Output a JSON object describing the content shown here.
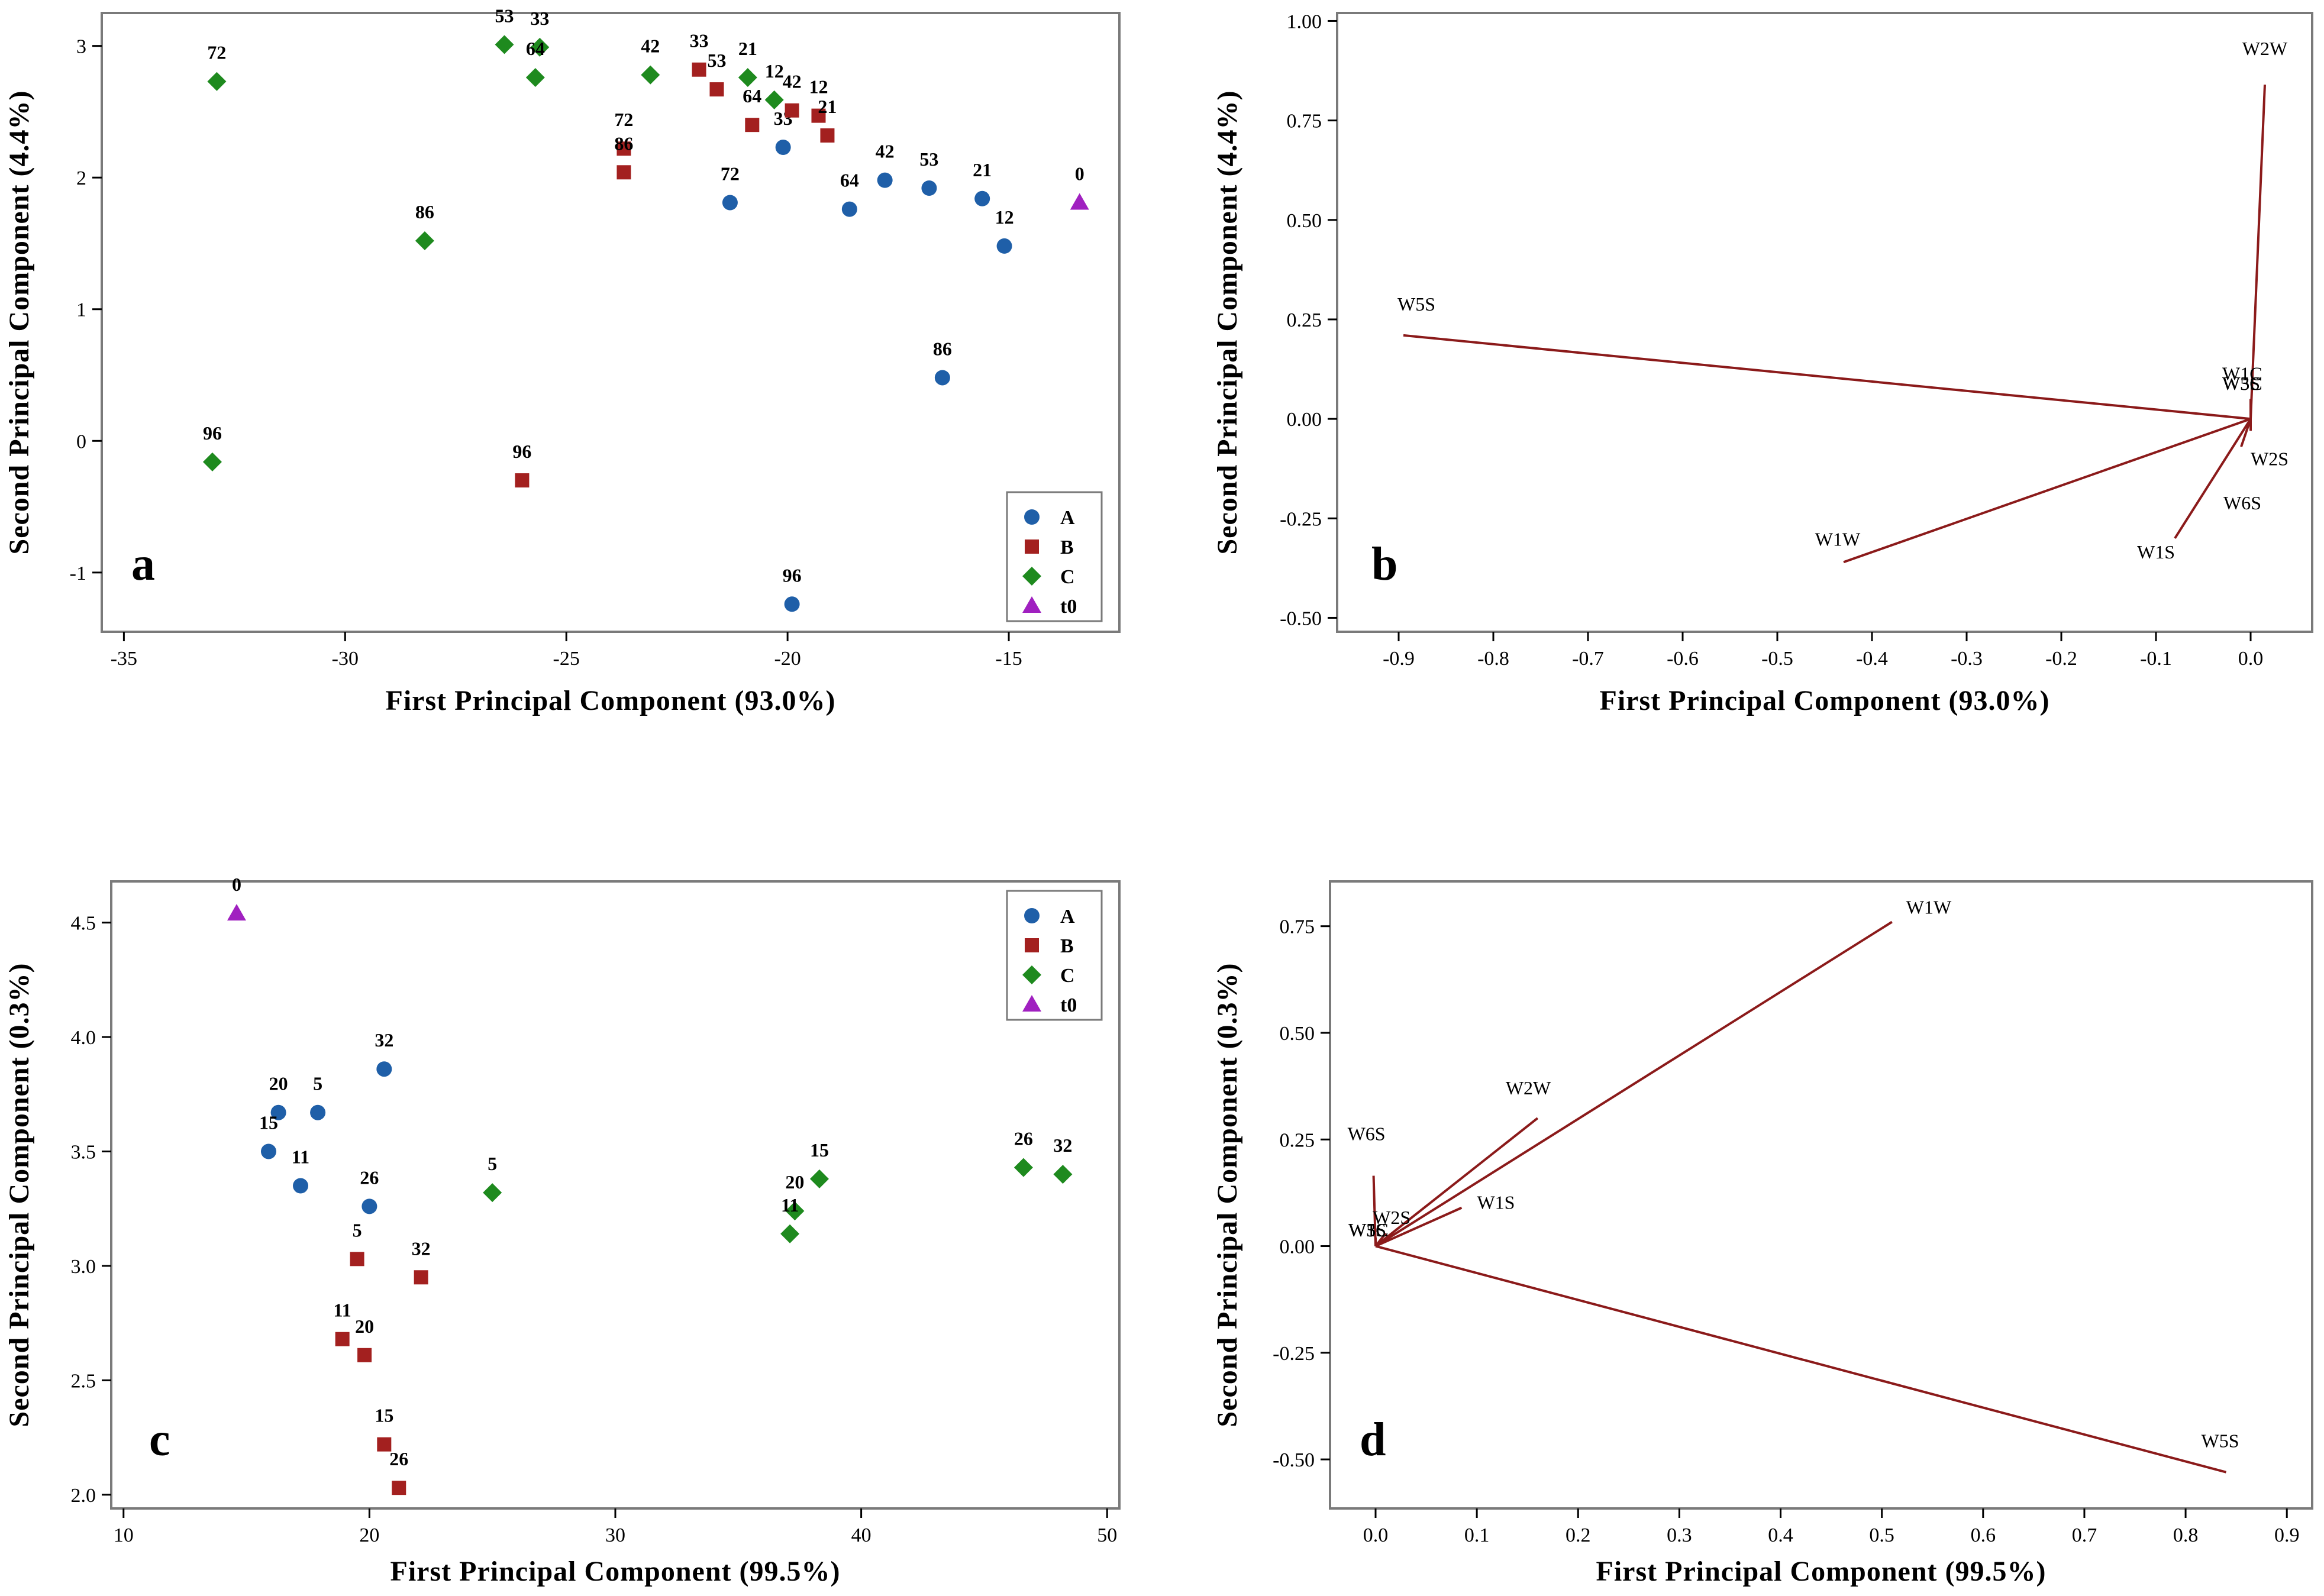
{
  "colors": {
    "A": "#1f5fa8",
    "B": "#a3201f",
    "C": "#1e8a1e",
    "t0": "#a020c0",
    "vector": "#8b1a1a"
  },
  "chart_data": [
    {
      "type": "scatter",
      "panel": "a",
      "xlabel": "First Principal Component (93.0%)",
      "ylabel": "Second Principal Component (4.4%)",
      "xlim": [
        -35.5,
        -12.5
      ],
      "ylim": [
        -1.45,
        3.25
      ],
      "xticks": [
        -35,
        -30,
        -25,
        -20,
        -15
      ],
      "yticks": [
        -1,
        0,
        1,
        2,
        3
      ],
      "legend": [
        "A",
        "B",
        "C",
        "t0"
      ],
      "legend_position": "bottom-right",
      "series": [
        {
          "name": "A",
          "marker": "circle",
          "points": [
            {
              "x": -21.3,
              "y": 1.81,
              "label": "72"
            },
            {
              "x": -20.1,
              "y": 2.23,
              "label": "33"
            },
            {
              "x": -18.6,
              "y": 1.76,
              "label": "64"
            },
            {
              "x": -17.8,
              "y": 1.98,
              "label": "42"
            },
            {
              "x": -16.8,
              "y": 1.92,
              "label": "53"
            },
            {
              "x": -15.6,
              "y": 1.84,
              "label": "21"
            },
            {
              "x": -15.1,
              "y": 1.48,
              "label": "12"
            },
            {
              "x": -16.5,
              "y": 0.48,
              "label": "86"
            },
            {
              "x": -19.9,
              "y": -1.24,
              "label": "96"
            }
          ]
        },
        {
          "name": "B",
          "marker": "square",
          "points": [
            {
              "x": -23.7,
              "y": 2.22,
              "label": "72"
            },
            {
              "x": -23.7,
              "y": 2.04,
              "label": "86"
            },
            {
              "x": -22.0,
              "y": 2.82,
              "label": "33"
            },
            {
              "x": -21.6,
              "y": 2.67,
              "label": "53"
            },
            {
              "x": -20.8,
              "y": 2.4,
              "label": "64"
            },
            {
              "x": -19.9,
              "y": 2.51,
              "label": "42"
            },
            {
              "x": -19.3,
              "y": 2.47,
              "label": "12"
            },
            {
              "x": -19.1,
              "y": 2.32,
              "label": "21"
            },
            {
              "x": -26.0,
              "y": -0.3,
              "label": "96"
            }
          ]
        },
        {
          "name": "C",
          "marker": "diamond",
          "points": [
            {
              "x": -32.9,
              "y": 2.73,
              "label": "72"
            },
            {
              "x": -26.4,
              "y": 3.01,
              "label": "53"
            },
            {
              "x": -25.6,
              "y": 2.99,
              "label": "33"
            },
            {
              "x": -25.7,
              "y": 2.76,
              "label": "64"
            },
            {
              "x": -23.1,
              "y": 2.78,
              "label": "42"
            },
            {
              "x": -20.9,
              "y": 2.76,
              "label": "21"
            },
            {
              "x": -20.3,
              "y": 2.59,
              "label": "12"
            },
            {
              "x": -28.2,
              "y": 1.52,
              "label": "86"
            },
            {
              "x": -33.0,
              "y": -0.16,
              "label": "96"
            }
          ]
        },
        {
          "name": "t0",
          "marker": "triangle",
          "points": [
            {
              "x": -13.4,
              "y": 1.81,
              "label": "0"
            }
          ]
        }
      ]
    },
    {
      "type": "biplot",
      "panel": "b",
      "xlabel": "First Principal Component (93.0%)",
      "ylabel": "Second Principal Component (4.4%)",
      "xlim": [
        -0.965,
        0.065
      ],
      "ylim": [
        -0.535,
        1.02
      ],
      "xticks": [
        -0.9,
        -0.8,
        -0.7,
        -0.6,
        -0.5,
        -0.4,
        -0.3,
        -0.2,
        -0.1,
        0.0
      ],
      "xticklabels": [
        "-0.9",
        "-0.8",
        "-0.7",
        "-0.6",
        "-0.5",
        "-0.4",
        "-0.3",
        "-0.2",
        "-0.1",
        "0.0"
      ],
      "yticks": [
        -0.5,
        -0.25,
        0,
        0.25,
        0.5,
        0.75,
        1.0
      ],
      "yticklabels": [
        "-0.50",
        "-0.25",
        "0.00",
        "0.25",
        "0.50",
        "0.75",
        "1.00"
      ],
      "vectors": [
        {
          "name": "W2W",
          "x": 0.015,
          "y": 0.84
        },
        {
          "name": "W5S",
          "x": -0.895,
          "y": 0.21
        },
        {
          "name": "W1W",
          "x": -0.43,
          "y": -0.36
        },
        {
          "name": "W1S",
          "x": -0.08,
          "y": -0.3
        },
        {
          "name": "W6S",
          "x": -0.01,
          "y": -0.07
        },
        {
          "name": "W2S",
          "x": 0.0,
          "y": -0.03
        },
        {
          "name": "W1C",
          "x": 0.0,
          "y": 0.05
        },
        {
          "name": "W3S",
          "x": 0.0,
          "y": 0.04
        },
        {
          "name": "W5C",
          "x": 0.0,
          "y": 0.04
        },
        {
          "name": "W3C",
          "x": 0.0,
          "y": 0.04
        }
      ]
    },
    {
      "type": "scatter",
      "panel": "c",
      "xlabel": "First Principal Component (99.5%)",
      "ylabel": "Second Principal Component (0.3%)",
      "xlim": [
        9.5,
        50.5
      ],
      "ylim": [
        1.94,
        4.68
      ],
      "xticks": [
        10,
        20,
        30,
        40,
        50
      ],
      "yticks": [
        2.0,
        2.5,
        3.0,
        3.5,
        4.0,
        4.5
      ],
      "yticklabels": [
        "2.0",
        "2.5",
        "3.0",
        "3.5",
        "4.0",
        "4.5"
      ],
      "legend": [
        "A",
        "B",
        "C",
        "t0"
      ],
      "legend_position": "top-right",
      "series": [
        {
          "name": "A",
          "marker": "circle",
          "points": [
            {
              "x": 20.6,
              "y": 3.86,
              "label": "32"
            },
            {
              "x": 16.3,
              "y": 3.67,
              "label": "20"
            },
            {
              "x": 17.9,
              "y": 3.67,
              "label": "5"
            },
            {
              "x": 15.9,
              "y": 3.5,
              "label": "15"
            },
            {
              "x": 17.2,
              "y": 3.35,
              "label": "11"
            },
            {
              "x": 20.0,
              "y": 3.26,
              "label": "26"
            }
          ]
        },
        {
          "name": "B",
          "marker": "square",
          "points": [
            {
              "x": 19.5,
              "y": 3.03,
              "label": "5"
            },
            {
              "x": 22.1,
              "y": 2.95,
              "label": "32"
            },
            {
              "x": 18.9,
              "y": 2.68,
              "label": "11"
            },
            {
              "x": 19.8,
              "y": 2.61,
              "label": "20"
            },
            {
              "x": 20.6,
              "y": 2.22,
              "label": "15"
            },
            {
              "x": 21.2,
              "y": 2.03,
              "label": "26"
            }
          ]
        },
        {
          "name": "C",
          "marker": "diamond",
          "points": [
            {
              "x": 25.0,
              "y": 3.32,
              "label": "5"
            },
            {
              "x": 38.3,
              "y": 3.38,
              "label": "15"
            },
            {
              "x": 37.3,
              "y": 3.24,
              "label": "20"
            },
            {
              "x": 37.1,
              "y": 3.14,
              "label": "11"
            },
            {
              "x": 46.6,
              "y": 3.43,
              "label": "26"
            },
            {
              "x": 48.2,
              "y": 3.4,
              "label": "32"
            }
          ]
        },
        {
          "name": "t0",
          "marker": "triangle",
          "points": [
            {
              "x": 14.6,
              "y": 4.54,
              "label": "0"
            }
          ]
        }
      ]
    },
    {
      "type": "biplot",
      "panel": "d",
      "xlabel": "First Principal Component (99.5%)",
      "ylabel": "Second Principal Component (0.3%)",
      "xlim": [
        -0.045,
        0.925
      ],
      "ylim": [
        -0.615,
        0.855
      ],
      "xticks": [
        0.0,
        0.1,
        0.2,
        0.3,
        0.4,
        0.5,
        0.6,
        0.7,
        0.8,
        0.9
      ],
      "xticklabels": [
        "0.0",
        "0.1",
        "0.2",
        "0.3",
        "0.4",
        "0.5",
        "0.6",
        "0.7",
        "0.8",
        "0.9"
      ],
      "yticks": [
        -0.5,
        -0.25,
        0,
        0.25,
        0.5,
        0.75
      ],
      "yticklabels": [
        "-0.50",
        "-0.25",
        "0.00",
        "0.25",
        "0.50",
        "0.75"
      ],
      "vectors": [
        {
          "name": "W1W",
          "x": 0.51,
          "y": 0.76
        },
        {
          "name": "W2W",
          "x": 0.16,
          "y": 0.3
        },
        {
          "name": "W1S",
          "x": 0.085,
          "y": 0.09
        },
        {
          "name": "W6S",
          "x": -0.002,
          "y": 0.165
        },
        {
          "name": "W2S",
          "x": 0.01,
          "y": 0.03
        },
        {
          "name": "W5S",
          "x": 0.84,
          "y": -0.53
        },
        {
          "name": "W3S",
          "x": 0.0,
          "y": 0.02
        },
        {
          "name": "W5C",
          "x": 0.0,
          "y": 0.02
        },
        {
          "name": "W3C",
          "x": 0.0,
          "y": 0.02
        },
        {
          "name": "W1C",
          "x": 0.0,
          "y": 0.02
        }
      ]
    }
  ]
}
